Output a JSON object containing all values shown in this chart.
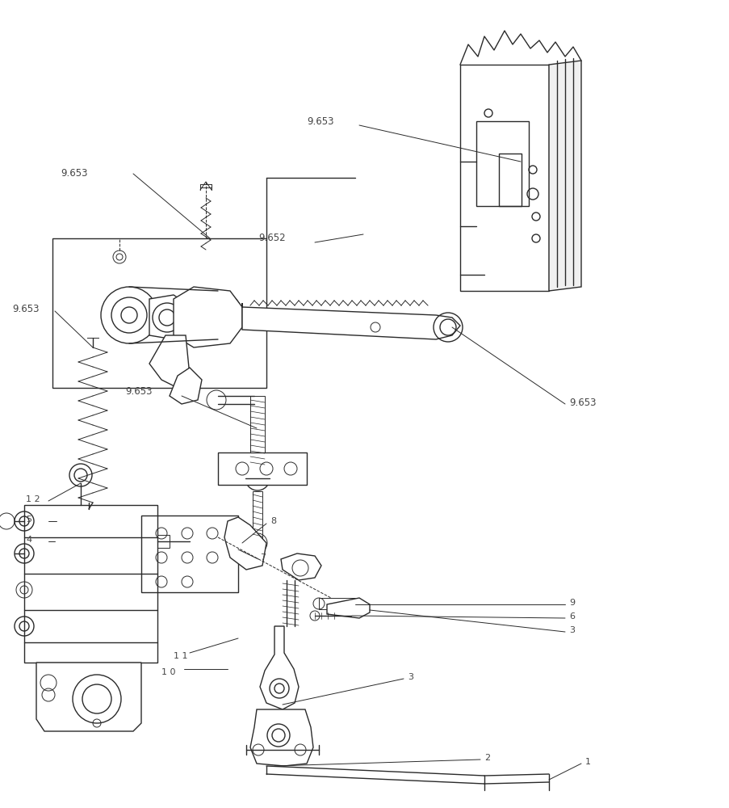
{
  "bg_color": "#ffffff",
  "lc": "#2a2a2a",
  "label_color": "#444444",
  "figsize": [
    9.04,
    10.0
  ],
  "dpi": 100
}
